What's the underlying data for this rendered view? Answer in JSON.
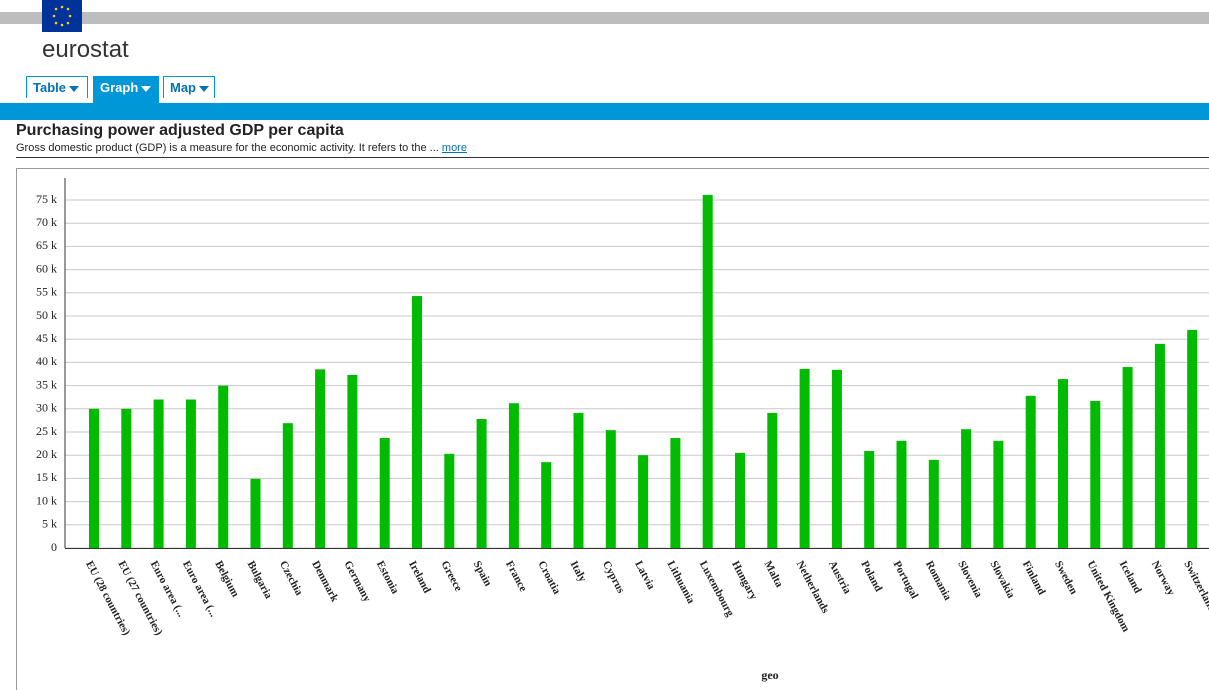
{
  "header": {
    "brand": "eurostat",
    "tabs": [
      "Table",
      "Graph",
      "Map"
    ]
  },
  "chart_data": {
    "type": "bar",
    "title": "Purchasing power adjusted GDP per capita",
    "subtitle": "Gross domestic product (GDP) is a measure for the economic activity. It refers to the ...",
    "more_link": "more",
    "x_label": "geo",
    "categories": [
      "EU (28 countries)",
      "EU (27 countries)",
      "Euro area (...",
      "Euro area (...",
      "Belgium",
      "Bulgaria",
      "Czechia",
      "Denmark",
      "Germany",
      "Estonia",
      "Ireland",
      "Greece",
      "Spain",
      "France",
      "Croatia",
      "Italy",
      "Cyprus",
      "Latvia",
      "Lithuania",
      "Luxembourg",
      "Hungary",
      "Malta",
      "Netherlands",
      "Austria",
      "Poland",
      "Portugal",
      "Romania",
      "Slovenia",
      "Slovakia",
      "Finland",
      "Sweden",
      "United Kingdom",
      "Iceland",
      "Norway",
      "Switzerland"
    ],
    "values": [
      30000,
      30000,
      32000,
      32000,
      35000,
      14900,
      26900,
      38500,
      37300,
      23700,
      54300,
      20300,
      27800,
      31200,
      18500,
      29100,
      25400,
      20000,
      23700,
      76100,
      20500,
      29100,
      38600,
      38400,
      20900,
      23100,
      19000,
      25600,
      23100,
      32800,
      36400,
      31700,
      39000,
      44000,
      47000
    ],
    "color": "#00bb00",
    "ylim": [
      0,
      80000
    ],
    "yticks": [
      0,
      {
        "value": 5000,
        "label": "5 k"
      },
      {
        "value": 10000,
        "label": "10 k"
      },
      {
        "value": 15000,
        "label": "15 k"
      },
      {
        "value": 20000,
        "label": "20 k"
      },
      {
        "value": 25000,
        "label": "25 k"
      },
      {
        "value": 30000,
        "label": "30 k"
      },
      {
        "value": 35000,
        "label": "35 k"
      },
      {
        "value": 40000,
        "label": "40 k"
      },
      {
        "value": 45000,
        "label": "45 k"
      },
      {
        "value": 50000,
        "label": "50 k"
      },
      {
        "value": 55000,
        "label": "55 k"
      },
      {
        "value": 60000,
        "label": "60 k"
      },
      {
        "value": 65000,
        "label": "65 k"
      },
      {
        "value": 70000,
        "label": "70 k"
      },
      {
        "value": 75000,
        "label": "75 k"
      }
    ],
    "grid": true
  }
}
